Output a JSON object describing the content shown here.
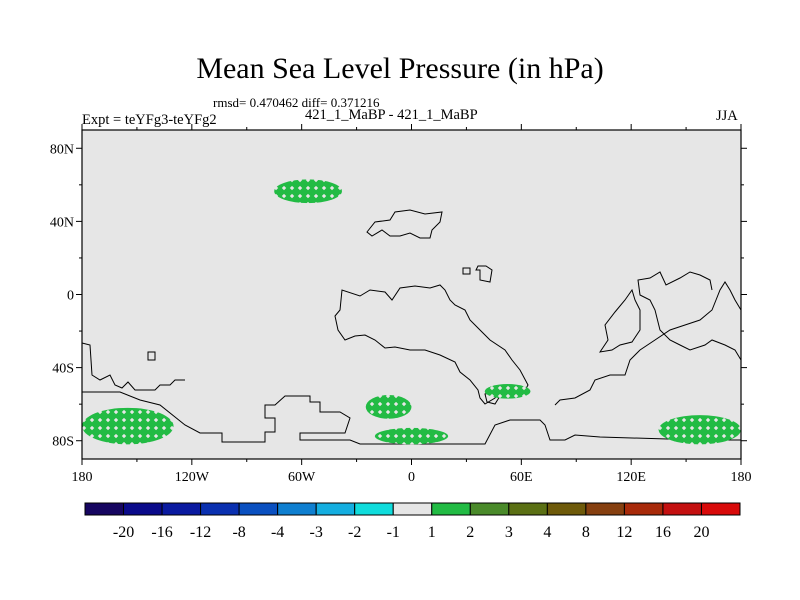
{
  "title": "Mean Sea Level Pressure (in hPa)",
  "stats": "rmsd= 0.470462 diff= 0.371216",
  "experiment_names": "421_1_MaBP - 421_1_MaBP",
  "experiment_label": "Expt = teYFg3-teYFg2",
  "season": "JJA",
  "colors": {
    "background_field": "#e6e6e6",
    "anomaly_fill": "#22bb44",
    "coastline": "#000000"
  },
  "map": {
    "lon_ticks": [
      "180",
      "120W",
      "60W",
      "0",
      "60E",
      "120E",
      "180"
    ],
    "lat_ticks": [
      "80N",
      "40N",
      "0",
      "40S",
      "80S"
    ],
    "lon_values": [
      -180,
      -120,
      -60,
      0,
      60,
      120,
      180
    ],
    "lat_values": [
      80,
      40,
      0,
      -40,
      -80
    ],
    "lon_range": [
      -180,
      180
    ],
    "lat_range": [
      -90,
      90
    ],
    "anomaly_regions": [
      {
        "lon": [
          -75,
          -38
        ],
        "lat": [
          50,
          63
        ]
      },
      {
        "lon": [
          -25,
          0
        ],
        "lat": [
          -68,
          -55
        ]
      },
      {
        "lon": [
          40,
          65
        ],
        "lat": [
          -57,
          -49
        ]
      },
      {
        "lon": [
          -180,
          -130
        ],
        "lat": [
          -82,
          -62
        ]
      },
      {
        "lon": [
          135,
          180
        ],
        "lat": [
          -82,
          -66
        ]
      },
      {
        "lon": [
          -20,
          20
        ],
        "lat": [
          -82,
          -73
        ]
      }
    ]
  },
  "colorbar": {
    "labels": [
      "-20",
      "-16",
      "-12",
      "-8",
      "-4",
      "-3",
      "-2",
      "-1",
      "1",
      "2",
      "3",
      "4",
      "8",
      "12",
      "16",
      "20"
    ],
    "colors": [
      "#160560",
      "#0a0a8a",
      "#0a1aa0",
      "#0a30b0",
      "#0a50c0",
      "#0f7fd0",
      "#14aee0",
      "#10dcdc",
      "#e6e6e6",
      "#22bb44",
      "#4a8a2a",
      "#5b7014",
      "#6e5a0a",
      "#864010",
      "#a82a0a",
      "#c41010",
      "#d80a0a"
    ]
  }
}
